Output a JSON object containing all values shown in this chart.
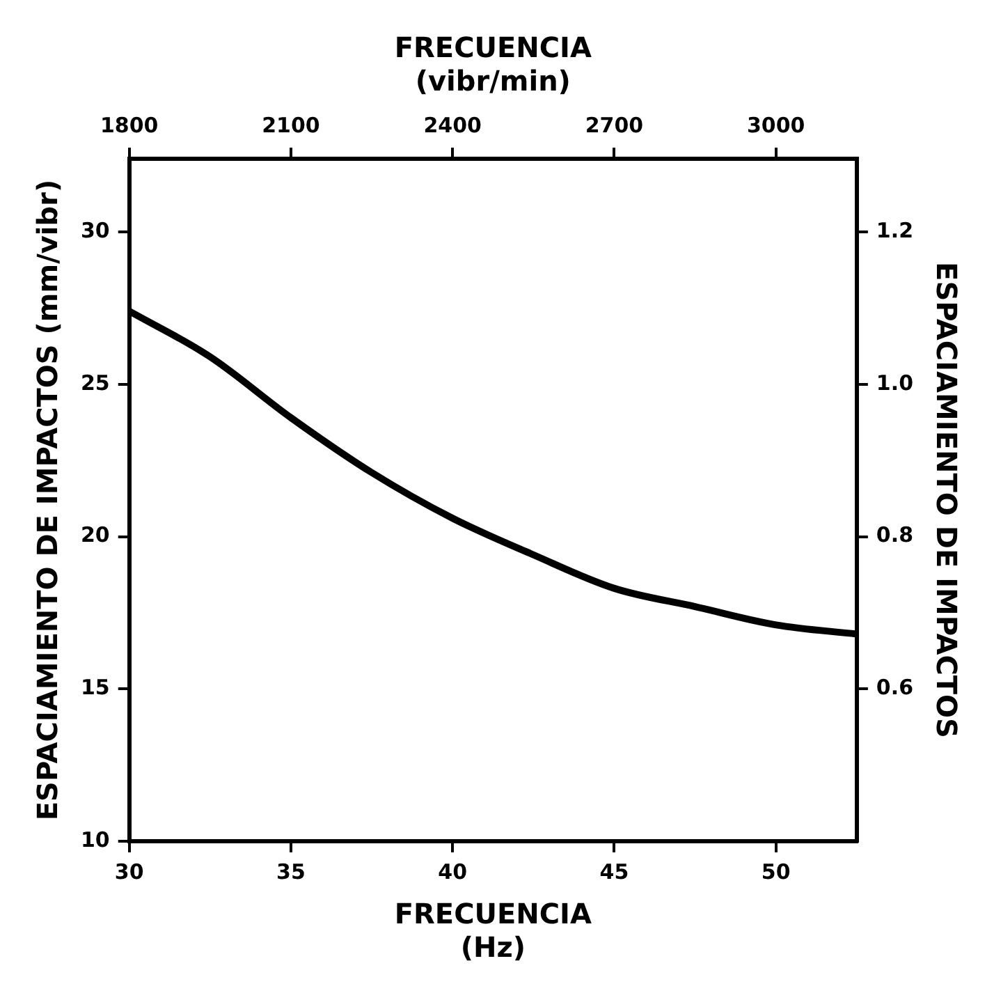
{
  "chart_data": {
    "type": "line",
    "xlabel": "FRECUENCIA\n(Hz)",
    "x2label": "FRECUENCIA\n(vibr/min)",
    "ylabel": "ESPACIAMIENTO DE IMPACTOS (mm/vibr)",
    "y2label": "ESPACIAMIENTO DE IMPACTOS",
    "x": [
      30,
      32.5,
      35,
      37.5,
      40,
      42.5,
      45,
      47.5,
      50,
      52.5
    ],
    "series": [
      {
        "color": "#000000",
        "values": [
          27.4,
          25.9,
          23.9,
          22.1,
          20.6,
          19.4,
          18.3,
          17.7,
          17.1,
          16.8
        ]
      }
    ],
    "xlim": [
      30,
      52.5
    ],
    "xticks": [
      30,
      35,
      40,
      45,
      50
    ],
    "x2lim": [
      1800,
      3150
    ],
    "x2ticks": [
      1800,
      2100,
      2400,
      2700,
      3000
    ],
    "ylim": [
      10,
      32.4
    ],
    "yticks": [
      10,
      15,
      20,
      25,
      30
    ],
    "y2lim": [
      0.4,
      1.296
    ],
    "y2ticks": [
      0.6,
      0.8,
      {
        "value": 1,
        "label": "1.0"
      },
      1.2
    ],
    "grid": false,
    "legend": false,
    "marker": "none",
    "line_style": "solid"
  }
}
